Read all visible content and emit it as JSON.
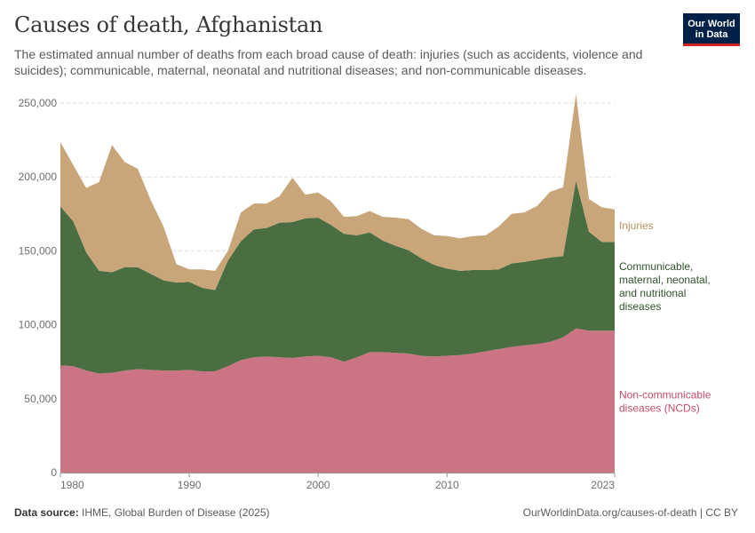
{
  "header": {
    "title": "Causes of death, Afghanistan",
    "subtitle": "The estimated annual number of deaths from each broad cause of death: injuries (such as accidents, violence and suicides); communicable, maternal, neonatal and nutritional diseases; and non-communicable diseases."
  },
  "logo": {
    "line1": "Our World",
    "line2": "in Data"
  },
  "footer": {
    "source_label": "Data source:",
    "source_text": "IHME, Global Burden of Disease (2025)",
    "credit": "OurWorldinData.org/causes-of-death | CC BY"
  },
  "chart_data": {
    "type": "area",
    "stacked": true,
    "title": "Causes of death, Afghanistan",
    "xlabel": "",
    "ylabel": "",
    "xlim": [
      1980,
      2023
    ],
    "ylim": [
      0,
      250000
    ],
    "y_ticks": [
      0,
      50000,
      100000,
      150000,
      200000,
      250000
    ],
    "y_tick_labels": [
      "0",
      "50,000",
      "100,000",
      "150,000",
      "200,000",
      "250,000"
    ],
    "x_ticks": [
      1980,
      1990,
      2000,
      2010,
      2023
    ],
    "x_tick_labels": [
      "1980",
      "1990",
      "2000",
      "2010",
      "2023"
    ],
    "grid": "horizontal dashed",
    "legend": "right, inline labels",
    "x": [
      1980,
      1981,
      1982,
      1983,
      1984,
      1985,
      1986,
      1987,
      1988,
      1989,
      1990,
      1991,
      1992,
      1993,
      1994,
      1995,
      1996,
      1997,
      1998,
      1999,
      2000,
      2001,
      2002,
      2003,
      2004,
      2005,
      2006,
      2007,
      2008,
      2009,
      2010,
      2011,
      2012,
      2013,
      2014,
      2015,
      2016,
      2017,
      2018,
      2019,
      2020,
      2021,
      2022,
      2023
    ],
    "series": [
      {
        "name": "Non-communicable diseases (NCDs)",
        "label_lines": [
          "Non-communicable",
          "diseases (NCDs)"
        ],
        "color": "#cb7584",
        "label_color": "#c24d65",
        "values": [
          72500,
          72000,
          69000,
          67000,
          67500,
          69000,
          70000,
          69500,
          69000,
          69000,
          69500,
          68500,
          68500,
          72000,
          76000,
          78000,
          78500,
          78000,
          77500,
          78500,
          79000,
          78000,
          75000,
          78000,
          81500,
          81500,
          81000,
          80500,
          79000,
          78500,
          79000,
          79500,
          80500,
          82000,
          83500,
          85000,
          86000,
          87000,
          88500,
          91500,
          97500,
          96000,
          96000,
          96000
        ]
      },
      {
        "name": "Communicable, maternal, neonatal, and nutritional diseases",
        "label_lines": [
          "Communicable,",
          "maternal, neonatal,",
          "and nutritional",
          "diseases"
        ],
        "color": "#4a6e41",
        "label_color": "#2c5327",
        "values": [
          107500,
          98000,
          80000,
          69500,
          68000,
          70000,
          69000,
          65000,
          61000,
          59500,
          59500,
          56500,
          55000,
          71500,
          80500,
          86500,
          87000,
          91000,
          92000,
          93500,
          93500,
          89500,
          86500,
          82500,
          81000,
          75500,
          72500,
          70000,
          66000,
          62000,
          59000,
          57000,
          56500,
          55000,
          54000,
          56500,
          56500,
          57000,
          57000,
          55000,
          100000,
          67000,
          60000,
          60000
        ]
      },
      {
        "name": "Injuries",
        "label_lines": [
          "Injuries"
        ],
        "color": "#c9a679",
        "label_color": "#b9915a",
        "values": [
          43500,
          38000,
          43500,
          60000,
          86000,
          71000,
          66500,
          50000,
          36500,
          12500,
          8500,
          12500,
          13000,
          6500,
          19500,
          17500,
          16500,
          18000,
          30000,
          16000,
          17000,
          16000,
          11500,
          13000,
          14500,
          16000,
          19000,
          21000,
          20000,
          20000,
          22000,
          22000,
          23000,
          23500,
          29000,
          33500,
          33500,
          36500,
          44500,
          46500,
          58500,
          22000,
          23500,
          22000
        ]
      }
    ]
  }
}
